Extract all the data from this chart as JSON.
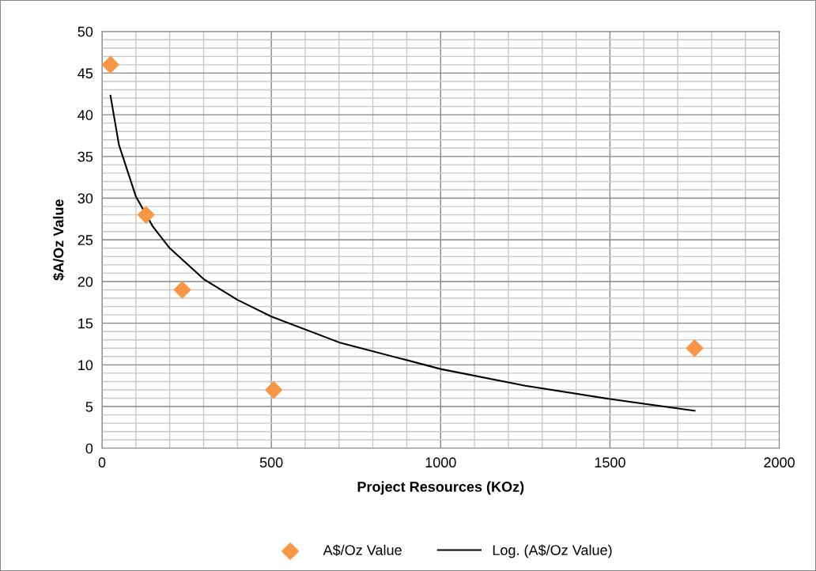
{
  "chart_data": {
    "type": "scatter",
    "xlabel": "Project Resources (KOz)",
    "ylabel": "$A/Oz Value",
    "xlim": [
      0,
      2000
    ],
    "ylim": [
      0,
      50
    ],
    "xticks": [
      0,
      {
        "value": 100,
        "label": null
      },
      {
        "value": 200,
        "label": null
      },
      {
        "value": 300,
        "label": null
      },
      {
        "value": 400,
        "label": null
      },
      500,
      {
        "value": 600,
        "label": null
      },
      {
        "value": 700,
        "label": null
      },
      {
        "value": 800,
        "label": null
      },
      {
        "value": 900,
        "label": null
      },
      1000,
      {
        "value": 1100,
        "label": null
      },
      {
        "value": 1200,
        "label": null
      },
      {
        "value": 1300,
        "label": null
      },
      {
        "value": 1400,
        "label": null
      },
      1500,
      {
        "value": 1600,
        "label": null
      },
      {
        "value": 1700,
        "label": null
      },
      {
        "value": 1800,
        "label": null
      },
      {
        "value": 1900,
        "label": null
      },
      2000
    ],
    "yticks": [
      0,
      {
        "value": 1,
        "label": null
      },
      {
        "value": 2,
        "label": null
      },
      {
        "value": 3,
        "label": null
      },
      {
        "value": 4,
        "label": null
      },
      5,
      {
        "value": 6,
        "label": null
      },
      {
        "value": 7,
        "label": null
      },
      {
        "value": 8,
        "label": null
      },
      {
        "value": 9,
        "label": null
      },
      10,
      {
        "value": 11,
        "label": null
      },
      {
        "value": 12,
        "label": null
      },
      {
        "value": 13,
        "label": null
      },
      {
        "value": 14,
        "label": null
      },
      15,
      {
        "value": 16,
        "label": null
      },
      {
        "value": 17,
        "label": null
      },
      {
        "value": 18,
        "label": null
      },
      {
        "value": 19,
        "label": null
      },
      20,
      {
        "value": 21,
        "label": null
      },
      {
        "value": 22,
        "label": null
      },
      {
        "value": 23,
        "label": null
      },
      {
        "value": 24,
        "label": null
      },
      25,
      {
        "value": 26,
        "label": null
      },
      {
        "value": 27,
        "label": null
      },
      {
        "value": 28,
        "label": null
      },
      {
        "value": 29,
        "label": null
      },
      30,
      {
        "value": 31,
        "label": null
      },
      {
        "value": 32,
        "label": null
      },
      {
        "value": 33,
        "label": null
      },
      {
        "value": 34,
        "label": null
      },
      35,
      {
        "value": 36,
        "label": null
      },
      {
        "value": 37,
        "label": null
      },
      {
        "value": 38,
        "label": null
      },
      {
        "value": 39,
        "label": null
      },
      40,
      {
        "value": 41,
        "label": null
      },
      {
        "value": 42,
        "label": null
      },
      {
        "value": 43,
        "label": null
      },
      {
        "value": 44,
        "label": null
      },
      45,
      {
        "value": 46,
        "label": null
      },
      {
        "value": 47,
        "label": null
      },
      {
        "value": 48,
        "label": null
      },
      {
        "value": 49,
        "label": null
      },
      50
    ],
    "grid": true,
    "legend": "bottom",
    "marker": "diamond",
    "series": [
      {
        "name": "A$/Oz Value",
        "color": "#f79646",
        "x": [
          25,
          130,
          237,
          507,
          1750
        ],
        "values": [
          46,
          28,
          19,
          7,
          12
        ]
      },
      {
        "name": "Log. (A$/Oz Value)",
        "type": "line",
        "color": "#000000",
        "marker": "none",
        "line_style": "solid",
        "x": [
          25,
          50,
          100,
          150,
          200,
          300,
          400,
          500,
          700,
          1000,
          1250,
          1500,
          1750
        ],
        "values": [
          42.3,
          36.4,
          30.2,
          26.6,
          24.0,
          20.3,
          17.8,
          15.8,
          12.7,
          9.5,
          7.5,
          5.9,
          4.5
        ]
      }
    ]
  }
}
